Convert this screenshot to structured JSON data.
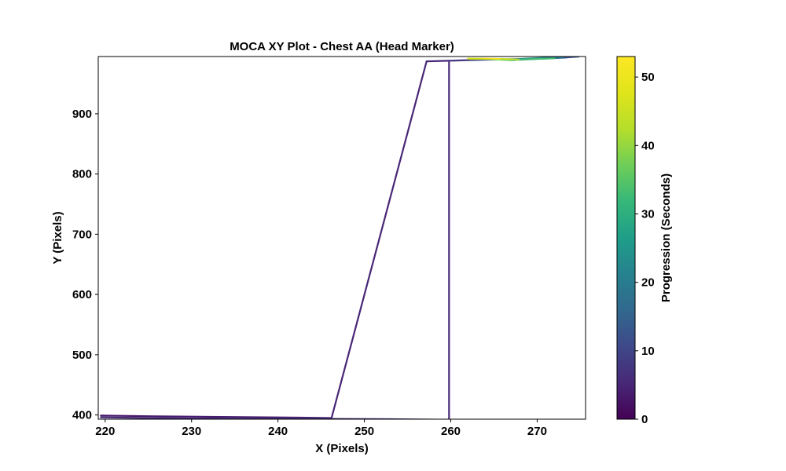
{
  "chart_data": {
    "type": "line",
    "title": "MOCA XY Plot - Chest AA (Head Marker)",
    "xlabel": "X (Pixels)",
    "ylabel": "Y (Pixels)",
    "xlim": [
      219.2,
      275.6
    ],
    "ylim": [
      393,
      995
    ],
    "x_ticks": [
      220,
      230,
      240,
      250,
      260,
      270
    ],
    "y_ticks": [
      400,
      500,
      600,
      700,
      800,
      900
    ],
    "grid": false,
    "colorbar": {
      "label": "Progression (Seconds)",
      "colormap": "viridis",
      "range": [
        0,
        53
      ],
      "ticks": [
        0,
        10,
        20,
        30,
        40,
        50
      ]
    },
    "series": [
      {
        "points": [
          {
            "x": 219.5,
            "y": 399,
            "t": 3
          },
          {
            "x": 225,
            "y": 398,
            "t": 3
          },
          {
            "x": 232,
            "y": 397,
            "t": 4
          },
          {
            "x": 240,
            "y": 396,
            "t": 4
          },
          {
            "x": 246.2,
            "y": 395,
            "t": 5
          },
          {
            "x": 257.2,
            "y": 987,
            "t": 5
          },
          {
            "x": 259.8,
            "y": 988,
            "t": 6
          },
          {
            "x": 259.8,
            "y": 392,
            "t": 6
          },
          {
            "x": 253,
            "y": 393,
            "t": 6
          },
          {
            "x": 246,
            "y": 393.5,
            "t": 6
          },
          {
            "x": 235,
            "y": 394,
            "t": 6
          },
          {
            "x": 225,
            "y": 395,
            "t": 6
          },
          {
            "x": 219.5,
            "y": 396,
            "t": 6
          }
        ]
      },
      {
        "points": [
          {
            "x": 259.8,
            "y": 988,
            "t": 7
          },
          {
            "x": 262,
            "y": 989,
            "t": 8
          },
          {
            "x": 265,
            "y": 990,
            "t": 12
          },
          {
            "x": 268,
            "y": 991,
            "t": 20
          },
          {
            "x": 271,
            "y": 993,
            "t": 25
          },
          {
            "x": 274.8,
            "y": 995,
            "t": 15
          },
          {
            "x": 273,
            "y": 993,
            "t": 10
          },
          {
            "x": 270,
            "y": 991,
            "t": 28
          },
          {
            "x": 267,
            "y": 989,
            "t": 32
          },
          {
            "x": 264,
            "y": 991,
            "t": 40
          },
          {
            "x": 262,
            "y": 991.5,
            "t": 44
          },
          {
            "x": 264,
            "y": 991.5,
            "t": 50
          },
          {
            "x": 265.8,
            "y": 991,
            "t": 53
          },
          {
            "x": 268,
            "y": 990,
            "t": 36
          },
          {
            "x": 272,
            "y": 992,
            "t": 30
          }
        ]
      }
    ]
  }
}
